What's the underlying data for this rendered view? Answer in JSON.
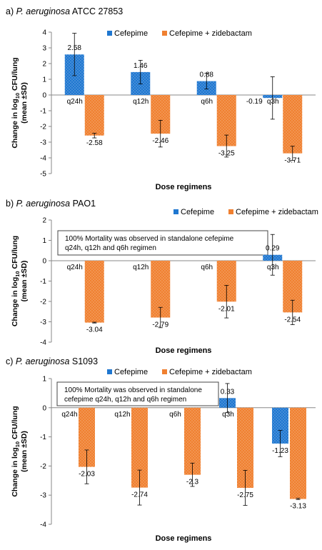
{
  "legend": {
    "series_labels": [
      "Cefepime",
      "Cefepime + zidebactam"
    ]
  },
  "colors": {
    "cefepime": "#1f77d0",
    "combo": "#f08030",
    "axis": "#888888",
    "text": "#000000"
  },
  "chart_data": [
    {
      "type": "bar",
      "panel_prefix": "a)",
      "title_italic": "P. aeruginosa",
      "title_rest": "ATCC 27853",
      "ylabel_line1_pre": "Change in log",
      "ylabel_line1_sub": "10",
      "ylabel_line1_post": " CFU/lung",
      "ylabel_line2": "(mean ±SD)",
      "xlabel": "Dose regimens",
      "ylim": [
        -5,
        4
      ],
      "yticks": [
        4,
        3,
        2,
        1,
        0,
        -1,
        -2,
        -3,
        -4,
        -5
      ],
      "categories": [
        "q24h",
        "q12h",
        "q6h",
        "q3h"
      ],
      "legend_position": "top-right",
      "annotation": "",
      "series": [
        {
          "name": "Cefepime",
          "values": [
            2.58,
            1.46,
            0.88,
            -0.19
          ],
          "labels": [
            "2.58",
            "1.46",
            "0.88",
            "-0.19"
          ],
          "error": [
            1.35,
            0.75,
            0.5,
            1.35
          ]
        },
        {
          "name": "Cefepime + zidebactam",
          "values": [
            -2.58,
            -2.46,
            -3.25,
            -3.71
          ],
          "labels": [
            "-2.58",
            "-2.46",
            "-3.25",
            "-3.71"
          ],
          "error": [
            0.15,
            0.85,
            0.7,
            0.45
          ]
        }
      ]
    },
    {
      "type": "bar",
      "panel_prefix": "b)",
      "title_italic": "P. aeruginosa",
      "title_rest": "PAO1",
      "ylabel_line1_pre": "Change in log",
      "ylabel_line1_sub": "10",
      "ylabel_line1_post": " CFU/lung",
      "ylabel_line2": "(mean ±SD)",
      "xlabel": "Dose regimens",
      "ylim": [
        -4,
        2
      ],
      "yticks": [
        2,
        1,
        0,
        -1,
        -2,
        -3,
        -4
      ],
      "categories": [
        "q24h",
        "q12h",
        "q6h",
        "q3h"
      ],
      "legend_position": "top-right",
      "annotation_lines": [
        "100% Mortality was observed in standalone cefepime",
        "q24h, q12h and q6h regimen"
      ],
      "series": [
        {
          "name": "Cefepime",
          "values": [
            null,
            null,
            null,
            0.29
          ],
          "labels": [
            "",
            "",
            "",
            "0.29"
          ],
          "error": [
            0,
            0,
            0,
            1.0
          ]
        },
        {
          "name": "Cefepime + zidebactam",
          "values": [
            -3.04,
            -2.79,
            -2.01,
            -2.54
          ],
          "labels": [
            "-3.04",
            "-2.79",
            "-2.01",
            "-2.54"
          ],
          "error": [
            0.02,
            0.5,
            0.8,
            0.6
          ]
        }
      ]
    },
    {
      "type": "bar",
      "panel_prefix": "c)",
      "title_italic": "P. aeruginosa",
      "title_rest": "S1093",
      "ylabel_line1_pre": "Change in log",
      "ylabel_line1_sub": "10",
      "ylabel_line1_post": " CFU/lung",
      "ylabel_line2": "(mean ±SD)",
      "xlabel": "Dose regimens",
      "ylim": [
        -4,
        1
      ],
      "yticks": [
        1,
        0,
        -1,
        -2,
        -3,
        -4
      ],
      "categories": [
        "q24h",
        "q12h",
        "q6h",
        "q3h",
        "q2h"
      ],
      "legend_position": "top",
      "annotation_lines": [
        "100% Mortality was observed in standalone",
        "cefepime q24h, q12h and q6h regimen"
      ],
      "series": [
        {
          "name": "Cefepime",
          "values": [
            null,
            null,
            null,
            0.33,
            -1.23
          ],
          "labels": [
            "",
            "",
            "",
            "0.33",
            "-1.23"
          ],
          "error": [
            0,
            0,
            0,
            0.5,
            0.45
          ]
        },
        {
          "name": "Cefepime + zidebactam",
          "values": [
            -2.03,
            -2.74,
            -2.3,
            -2.75,
            -3.13
          ],
          "labels": [
            "-2.03",
            "-2.74",
            "-2.3",
            "-2.75",
            "-3.13"
          ],
          "error": [
            0.58,
            0.6,
            0.4,
            0.6,
            0.02
          ]
        }
      ]
    }
  ]
}
